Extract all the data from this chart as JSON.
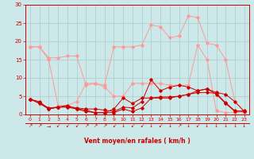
{
  "bg_color": "#cce8e8",
  "grid_color": "#aacccc",
  "line_color_dark": "#cc0000",
  "line_color_light": "#ff9999",
  "xlabel": "Vent moyen/en rafales ( km/h )",
  "xlim": [
    -0.5,
    23.5
  ],
  "ylim": [
    0,
    30
  ],
  "xticks": [
    0,
    1,
    2,
    3,
    4,
    5,
    6,
    7,
    8,
    9,
    10,
    11,
    12,
    13,
    14,
    15,
    16,
    17,
    18,
    19,
    20,
    21,
    22,
    23
  ],
  "yticks": [
    0,
    5,
    10,
    15,
    20,
    25,
    30
  ],
  "series_dark": [
    [
      4.2,
      3.2,
      1.8,
      2.0,
      2.2,
      1.8,
      1.5,
      1.5,
      1.2,
      0.8,
      2.0,
      1.8,
      3.5,
      9.5,
      6.5,
      7.5,
      8.0,
      7.5,
      6.5,
      7.0,
      5.5,
      3.0,
      0.8,
      1.0
    ],
    [
      4.2,
      3.0,
      1.5,
      2.0,
      2.0,
      1.5,
      1.2,
      0.5,
      0.5,
      0.5,
      1.5,
      0.8,
      1.8,
      4.5,
      4.5,
      4.5,
      5.0,
      5.5,
      6.0,
      6.0,
      5.8,
      3.2,
      1.0,
      0.8
    ],
    [
      4.2,
      3.5,
      1.5,
      2.0,
      2.5,
      1.5,
      0.8,
      0.5,
      0.5,
      1.5,
      4.5,
      3.0,
      4.5,
      4.5,
      4.8,
      4.8,
      5.0,
      5.5,
      6.5,
      7.0,
      6.0,
      5.5,
      3.5,
      0.8
    ]
  ],
  "series_light": [
    [
      18.5,
      18.5,
      15.5,
      15.5,
      16.0,
      16.0,
      8.0,
      8.5,
      8.0,
      18.5,
      18.5,
      18.5,
      19.0,
      24.5,
      24.0,
      21.0,
      21.5,
      27.0,
      26.5,
      19.5,
      19.0,
      15.0,
      3.5,
      1.0
    ],
    [
      18.5,
      18.5,
      15.0,
      2.5,
      2.5,
      3.5,
      8.5,
      8.5,
      7.5,
      5.0,
      5.0,
      8.5,
      8.5,
      8.5,
      8.5,
      8.0,
      8.0,
      8.0,
      19.0,
      15.0,
      1.0,
      0.5,
      0.5,
      0.5
    ]
  ],
  "arrow_symbols": [
    "↗",
    "↗",
    "→",
    "↙",
    "↙",
    "↙",
    "↗",
    "↗",
    "↗",
    "↙",
    "↓",
    "↙",
    "↙",
    "↓",
    "↙",
    "↓",
    "↗",
    "↓",
    "↙",
    "↓",
    "↓",
    "↓",
    "↓",
    "↓"
  ]
}
